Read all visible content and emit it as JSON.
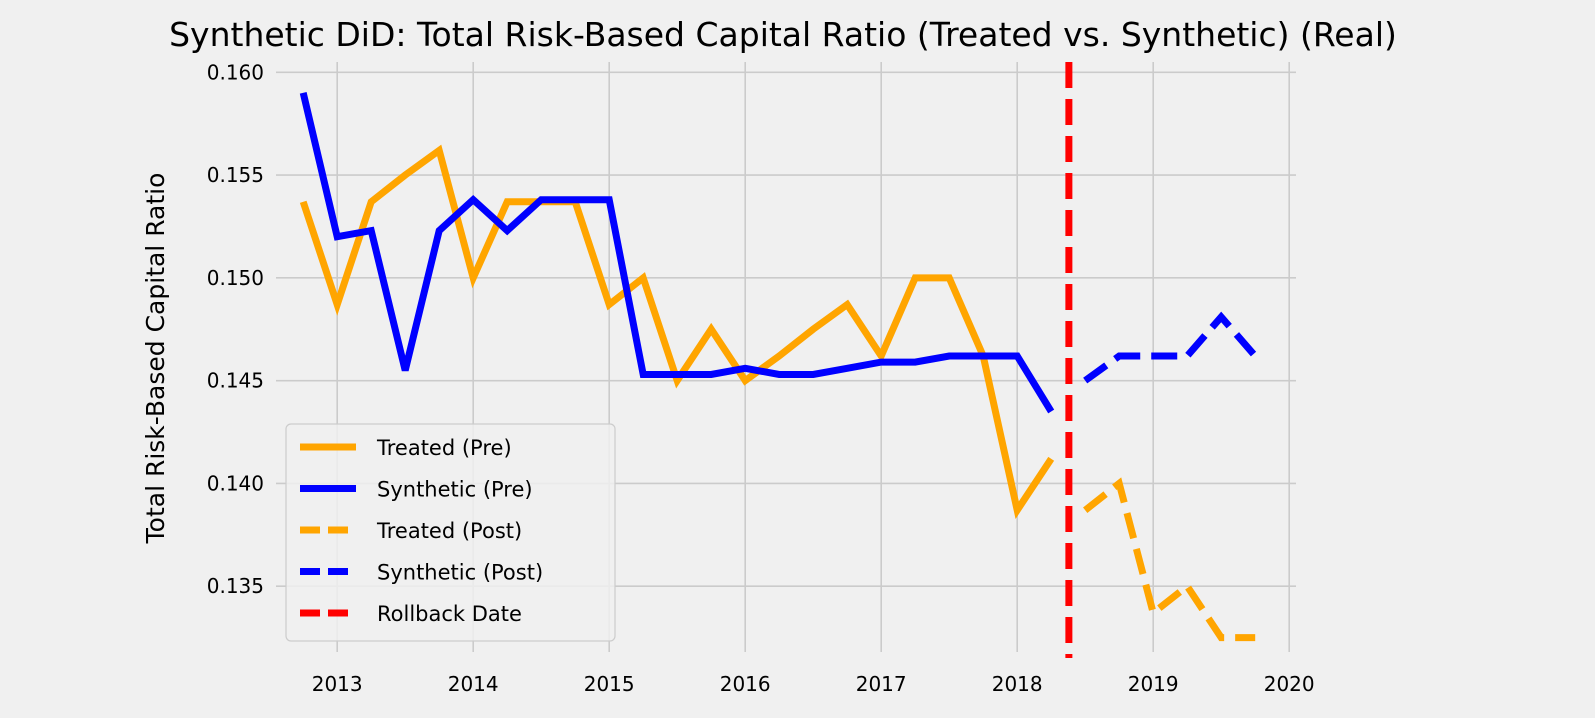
{
  "chart_data": {
    "type": "line",
    "title": "Synthetic DiD: Total Risk-Based Capital Ratio (Treated vs. Synthetic) (Real)",
    "xlabel": "",
    "ylabel": "Total Risk-Based Capital Ratio",
    "xlim": [
      2012.55,
      2020.05
    ],
    "ylim": [
      0.1318,
      0.1605
    ],
    "x_ticks": [
      2013,
      2014,
      2015,
      2016,
      2017,
      2018,
      2019,
      2020
    ],
    "x_tick_labels": [
      "2013",
      "2014",
      "2015",
      "2016",
      "2017",
      "2018",
      "2019",
      "2020"
    ],
    "y_ticks": [
      0.135,
      0.14,
      0.145,
      0.15,
      0.155,
      0.16
    ],
    "y_tick_labels": [
      "0.135",
      "0.140",
      "0.145",
      "0.150",
      "0.155",
      "0.160"
    ],
    "grid": true,
    "legend_position": "lower-left",
    "series": [
      {
        "name": "Treated (Pre)",
        "color": "#ffa500",
        "style": "solid",
        "x": [
          2012.75,
          2013.0,
          2013.25,
          2013.5,
          2013.75,
          2014.0,
          2014.25,
          2014.5,
          2014.75,
          2015.0,
          2015.25,
          2015.5,
          2015.75,
          2016.0,
          2016.25,
          2016.5,
          2016.75,
          2017.0,
          2017.25,
          2017.5,
          2017.75,
          2018.0,
          2018.25
        ],
        "values": [
          0.1537,
          0.1487,
          0.1537,
          0.155,
          0.1562,
          0.15,
          0.1537,
          0.1537,
          0.1537,
          0.1487,
          0.15,
          0.145,
          0.1475,
          0.145,
          0.1462,
          0.1475,
          0.1487,
          0.1462,
          0.15,
          0.15,
          0.1462,
          0.1387,
          0.1412
        ]
      },
      {
        "name": "Synthetic (Pre)",
        "color": "#0000ff",
        "style": "solid",
        "x": [
          2012.75,
          2013.0,
          2013.25,
          2013.5,
          2013.75,
          2014.0,
          2014.25,
          2014.5,
          2014.75,
          2015.0,
          2015.25,
          2015.5,
          2015.75,
          2016.0,
          2016.25,
          2016.5,
          2016.75,
          2017.0,
          2017.25,
          2017.5,
          2017.75,
          2018.0,
          2018.25
        ],
        "values": [
          0.159,
          0.152,
          0.1523,
          0.1455,
          0.1523,
          0.1538,
          0.1523,
          0.1538,
          0.1538,
          0.1538,
          0.1453,
          0.1453,
          0.1453,
          0.1456,
          0.1453,
          0.1453,
          0.1456,
          0.1459,
          0.1459,
          0.1462,
          0.1462,
          0.1462,
          0.1435
        ]
      },
      {
        "name": "Treated (Post)",
        "color": "#ffa500",
        "style": "dashed",
        "x": [
          2018.5,
          2018.75,
          2019.0,
          2019.25,
          2019.5,
          2019.75
        ],
        "values": [
          0.1387,
          0.14,
          0.1337,
          0.135,
          0.1325,
          0.1325
        ]
      },
      {
        "name": "Synthetic (Post)",
        "color": "#0000ff",
        "style": "dashed",
        "x": [
          2018.5,
          2018.75,
          2019.0,
          2019.25,
          2019.5,
          2019.75
        ],
        "values": [
          0.145,
          0.1462,
          0.1462,
          0.1462,
          0.1481,
          0.1462
        ]
      }
    ],
    "vline": {
      "name": "Rollback Date",
      "x": 2018.38,
      "color": "#ff0000",
      "style": "dashed"
    }
  }
}
